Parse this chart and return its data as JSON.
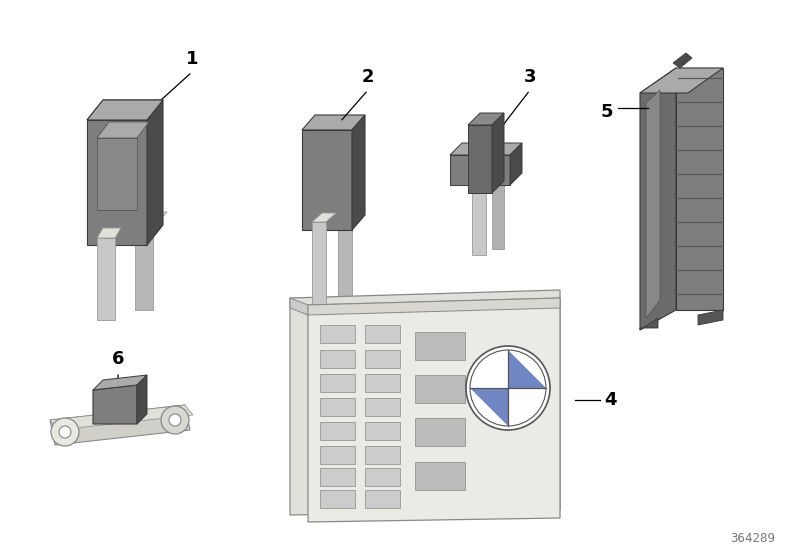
{
  "bg_color": "#ffffff",
  "dark_gray": "#6b6b6b",
  "mid_gray": "#7e7e7e",
  "light_gray": "#aaaaaa",
  "silver": "#c8c8c8",
  "silver_light": "#e0e0d8",
  "chrome": "#d0d0c8",
  "very_dark": "#4a4a4a",
  "edge_dark": "#3a3a3a",
  "diagram_number": "364289"
}
